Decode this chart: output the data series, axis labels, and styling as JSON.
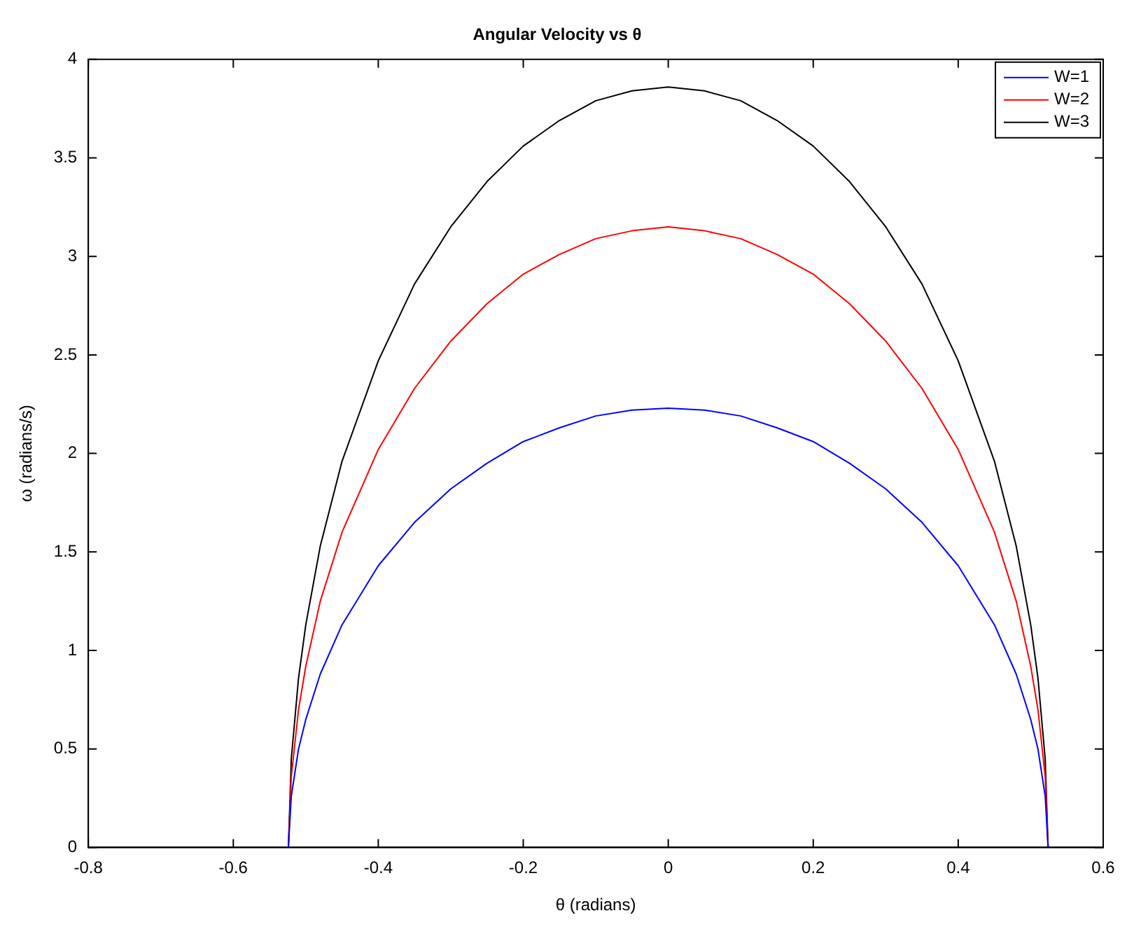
{
  "chart_data": {
    "type": "line",
    "title": "Angular Velocity vs θ",
    "xlabel": "θ (radians)",
    "ylabel": "ω (radians/s)",
    "xlim": [
      -0.8,
      0.6
    ],
    "xticks": [
      -0.8,
      -0.6,
      -0.4,
      -0.2,
      0,
      0.2,
      0.4,
      0.6
    ],
    "ylim": [
      0,
      4
    ],
    "yticks": [
      0,
      0.5,
      1,
      1.5,
      2,
      2.5,
      3,
      3.5,
      4
    ],
    "grid": false,
    "legend": "top right",
    "marker": "none",
    "line_style": "solid",
    "x": [
      -0.524,
      -0.52,
      -0.51,
      -0.5,
      -0.48,
      -0.45,
      -0.4,
      -0.35,
      -0.3,
      -0.25,
      -0.2,
      -0.15,
      -0.1,
      -0.05,
      0,
      0.05,
      0.1,
      0.15,
      0.2,
      0.25,
      0.3,
      0.35,
      0.4,
      0.45,
      0.48,
      0.5,
      0.51,
      0.52,
      0.524
    ],
    "series": [
      {
        "name": "W=1",
        "color": "#0000ff",
        "values": [
          0,
          0.26,
          0.5,
          0.65,
          0.88,
          1.13,
          1.43,
          1.65,
          1.82,
          1.95,
          2.06,
          2.13,
          2.19,
          2.22,
          2.23,
          2.22,
          2.19,
          2.13,
          2.06,
          1.95,
          1.82,
          1.65,
          1.43,
          1.13,
          0.88,
          0.65,
          0.5,
          0.26,
          0
        ]
      },
      {
        "name": "W=2",
        "color": "#ff0000",
        "values": [
          0,
          0.36,
          0.7,
          0.92,
          1.25,
          1.6,
          2.02,
          2.33,
          2.57,
          2.76,
          2.91,
          3.01,
          3.09,
          3.13,
          3.15,
          3.13,
          3.09,
          3.01,
          2.91,
          2.76,
          2.57,
          2.33,
          2.02,
          1.6,
          1.25,
          0.92,
          0.7,
          0.36,
          0
        ]
      },
      {
        "name": "W=3",
        "color": "#000000",
        "values": [
          0,
          0.45,
          0.86,
          1.13,
          1.53,
          1.96,
          2.47,
          2.86,
          3.15,
          3.38,
          3.56,
          3.69,
          3.79,
          3.84,
          3.86,
          3.84,
          3.79,
          3.69,
          3.56,
          3.38,
          3.15,
          2.86,
          2.47,
          1.96,
          1.53,
          1.13,
          0.86,
          0.45,
          0
        ]
      }
    ]
  }
}
